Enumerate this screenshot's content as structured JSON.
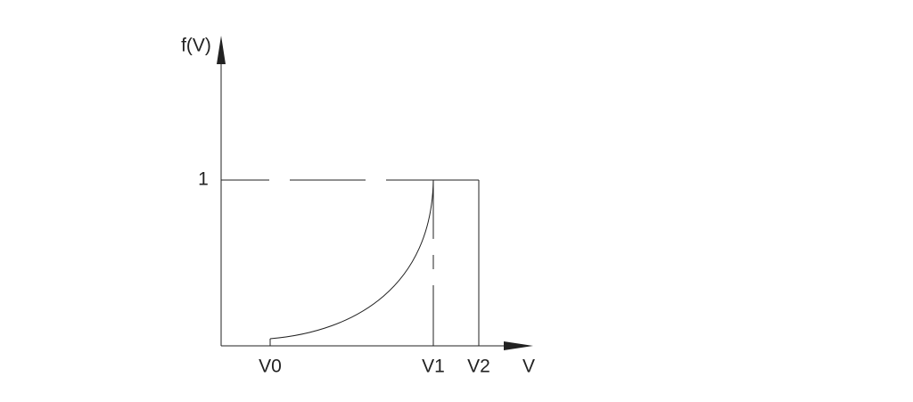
{
  "axes": {
    "y_label": "f(V)",
    "x_label": "V"
  },
  "y_ticks": [
    "1"
  ],
  "x_ticks": [
    "V0",
    "V1",
    "V2"
  ]
}
